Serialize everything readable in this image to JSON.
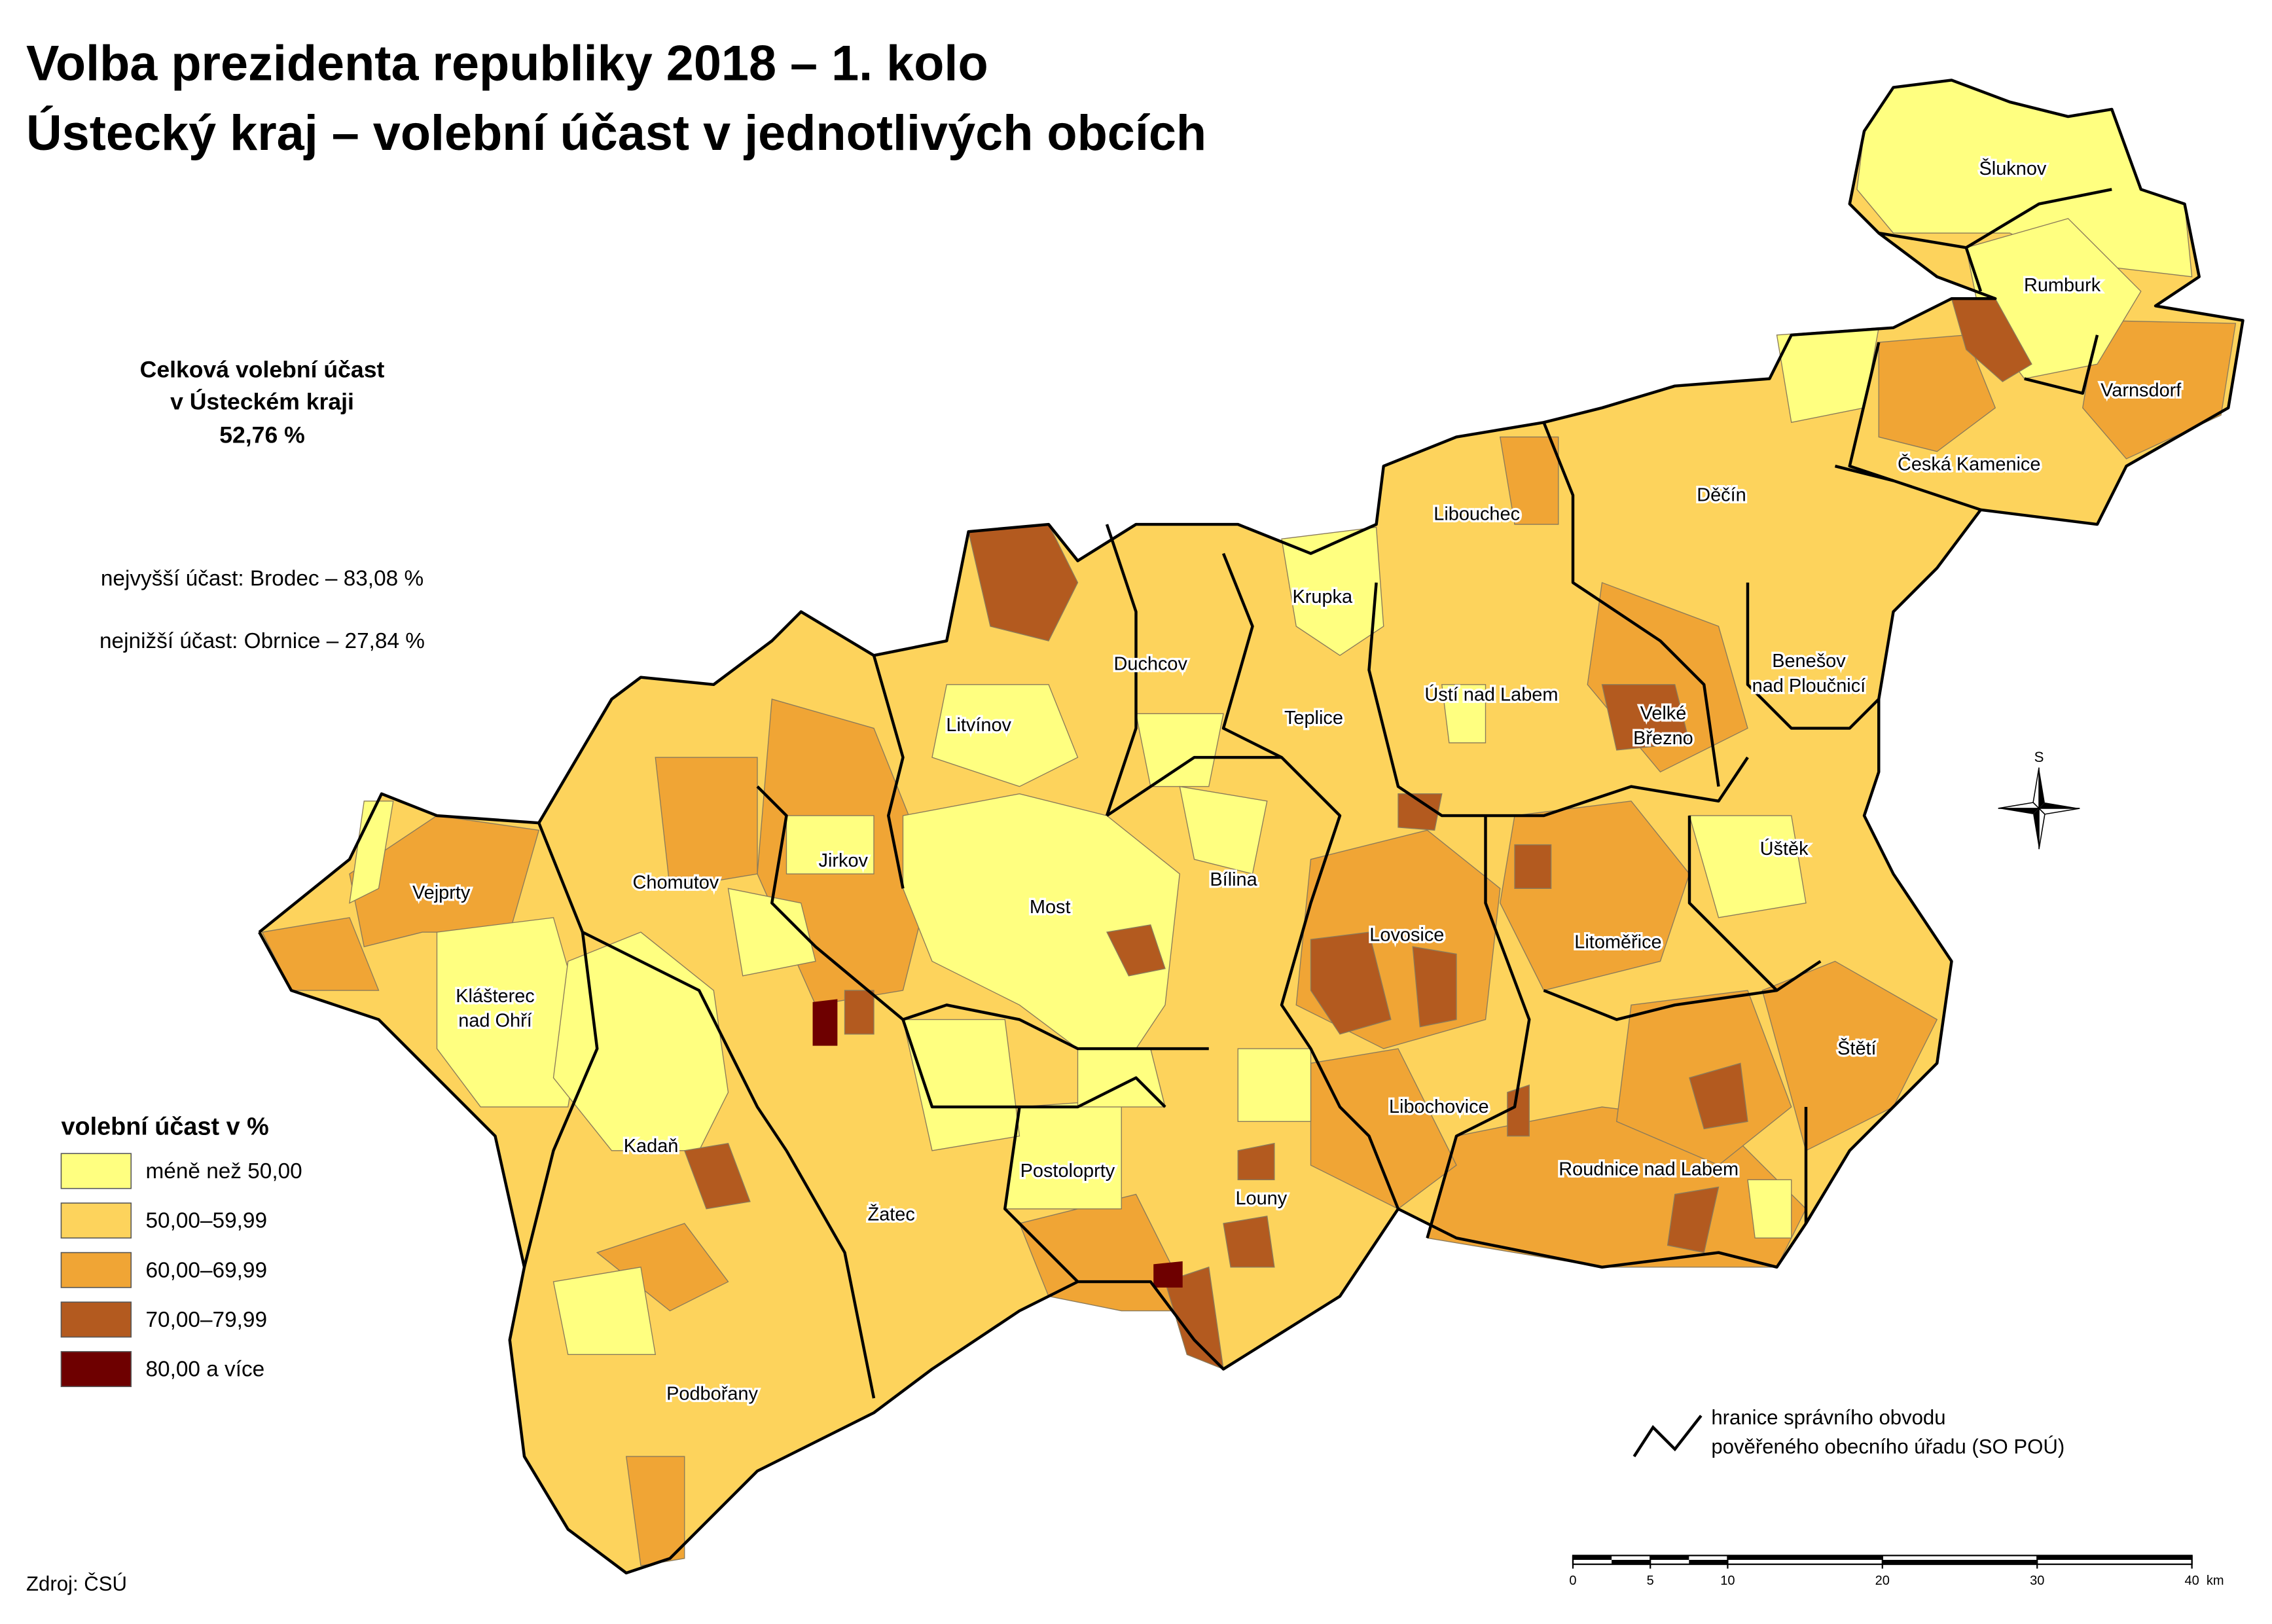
{
  "header": {
    "title": [
      "Volba prezidenta republiky 2018 – 1. kolo",
      "Ústecký kraj – volební účast v jednotlivých obcích"
    ]
  },
  "summary": {
    "lines": [
      "Celková volební účast",
      "v Ústeckém kraji",
      "52,76 %"
    ],
    "highest": "nejvyšší účast: Brodec – 83,08 %",
    "lowest": "nejnižší účast: Obrnice – 27,84 %"
  },
  "legend": {
    "title": "volební účast v %",
    "items": [
      {
        "label": "méně než 50,00",
        "color": "#ffff80"
      },
      {
        "label": "50,00–59,99",
        "color": "#fdd35c"
      },
      {
        "label": "60,00–69,99",
        "color": "#f0a535"
      },
      {
        "label": "70,00–79,99",
        "color": "#b35a1f"
      },
      {
        "label": "80,00 a více",
        "color": "#6e0000"
      }
    ]
  },
  "towns": [
    "Šluknov",
    "Rumburk",
    "Varnsdorf",
    "Česká Kamenice",
    "Libouchec",
    "Děčín",
    "Krupka",
    "Duchcov",
    "Teplice",
    "Ústí nad Labem",
    [
      "Benešov",
      "nad Ploučnicí"
    ],
    [
      "Velké",
      "Březno"
    ],
    "Litvínov",
    "Jirkov",
    "Chomutov",
    "Vejprty",
    "Most",
    "Bílina",
    "Úštěk",
    "Lovosice",
    "Litoměřice",
    [
      "Klášterec",
      "nad Ohří"
    ],
    "Štětí",
    "Libochovice",
    "Kadaň",
    "Postoloprty",
    "Roudnice nad Labem",
    "Louny",
    "Žatec",
    "Podbořany"
  ],
  "compass": "S",
  "boundary_legend": [
    "hranice správního obvodu",
    "pověřeného obecního úřadu (SO POÚ)"
  ],
  "scale_bar": {
    "ticks": [
      0,
      5,
      10,
      20,
      30,
      40
    ],
    "unit": "km"
  },
  "source": "Zdroj: ČSÚ"
}
